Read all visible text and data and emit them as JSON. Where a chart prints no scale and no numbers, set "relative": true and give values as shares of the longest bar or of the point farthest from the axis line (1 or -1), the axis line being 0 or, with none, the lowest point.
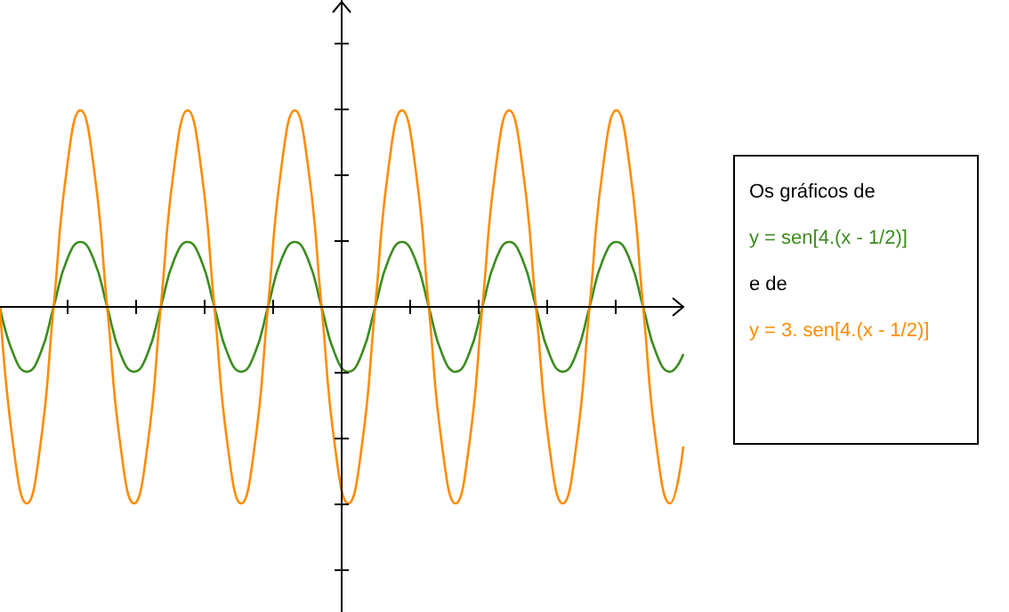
{
  "chart_data": {
    "type": "line",
    "relative": true,
    "legend": "right",
    "line_style": "solid",
    "categories": [
      null,
      null,
      null,
      null,
      null,
      null,
      null,
      null,
      null,
      null,
      null,
      null,
      null,
      null,
      null,
      null,
      null,
      null,
      null,
      null,
      null,
      null,
      null,
      null,
      null,
      null,
      null,
      null,
      null,
      null,
      null,
      null,
      null,
      null,
      null,
      null,
      null,
      null,
      null,
      null,
      null,
      null,
      null,
      null,
      null,
      null,
      null,
      null,
      null,
      null,
      null,
      null
    ],
    "annotations": [
      "Os gráficos de",
      "e de"
    ],
    "series": [
      {
        "name": "y = sen[4.(x - 1/2)]",
        "color": "#3c8c1e",
        "values": [
          0,
          -0.24,
          -0.33,
          -0.24,
          0,
          0.24,
          0.33,
          0.24,
          0,
          -0.24,
          -0.33,
          -0.24,
          0,
          0.24,
          0.33,
          0.24,
          0,
          -0.24,
          -0.33,
          -0.24,
          0,
          0.24,
          0.33,
          0.24,
          0,
          -0.24,
          -0.33,
          -0.24,
          0,
          0.24,
          0.33,
          0.24,
          0,
          -0.24,
          -0.33,
          -0.24,
          0,
          0.24,
          0.33,
          0.24,
          0,
          -0.24,
          -0.33,
          -0.24,
          0,
          0.24,
          0.33,
          0.24,
          0,
          -0.24,
          -0.33,
          -0.24
        ]
      },
      {
        "name": "y = 3. sen[4.(x - 1/2)]",
        "color": "#ff8c00",
        "values": [
          0,
          -0.71,
          -1,
          -0.71,
          0,
          0.71,
          1,
          0.71,
          0,
          -0.71,
          -1,
          -0.71,
          0,
          0.71,
          1,
          0.71,
          0,
          -0.71,
          -1,
          -0.71,
          0,
          0.71,
          1,
          0.71,
          0,
          -0.71,
          -1,
          -0.71,
          0,
          0.71,
          1,
          0.71,
          0,
          -0.71,
          -1,
          -0.71,
          0,
          0.71,
          1,
          0.71,
          0,
          -0.71,
          -1,
          -0.71,
          0,
          0.71,
          1,
          0.71,
          0,
          -0.71,
          -1,
          -0.71
        ]
      }
    ]
  }
}
